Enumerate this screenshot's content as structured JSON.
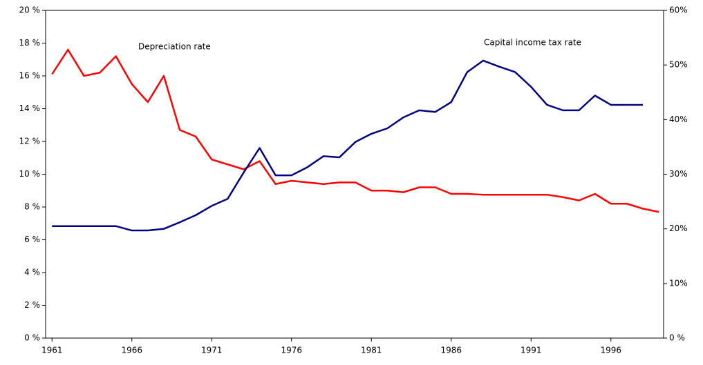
{
  "chart_data": {
    "type": "line",
    "annotations": [
      "Depreciation rate",
      "Capital income tax rate"
    ],
    "x": [
      1961,
      1962,
      1963,
      1964,
      1965,
      1966,
      1967,
      1968,
      1969,
      1970,
      1971,
      1972,
      1973,
      1974,
      1975,
      1976,
      1977,
      1978,
      1979,
      1980,
      1981,
      1982,
      1983,
      1984,
      1985,
      1986,
      1987,
      1988,
      1989,
      1990,
      1991,
      1992,
      1993,
      1994,
      1995,
      1996,
      1997,
      1998,
      1999
    ],
    "series": [
      {
        "color": "#ff0000",
        "axis": "y",
        "values": [
          16.1,
          17.6,
          16.0,
          16.2,
          17.2,
          15.5,
          14.4,
          16.0,
          12.7,
          12.3,
          10.9,
          10.6,
          10.3,
          10.8,
          9.4,
          9.6,
          9.5,
          9.4,
          9.5,
          9.5,
          9.0,
          9.0,
          8.9,
          9.2,
          9.2,
          8.8,
          8.8,
          8.75,
          8.75,
          8.75,
          8.75,
          8.75,
          8.6,
          8.4,
          8.8,
          8.2,
          8.2,
          7.9,
          7.7
        ]
      },
      {
        "color": "#000080",
        "axis": "y2",
        "values": [
          20.5,
          20.5,
          20.5,
          20.5,
          20.5,
          19.7,
          19.7,
          20.0,
          21.2,
          22.5,
          24.2,
          25.5,
          30.3,
          34.8,
          29.8,
          29.8,
          31.3,
          33.3,
          33.1,
          35.9,
          37.4,
          38.4,
          40.4,
          41.7,
          41.4,
          43.2,
          48.7,
          50.8,
          49.7,
          48.7,
          46.0,
          42.7,
          41.7,
          41.7,
          44.4,
          42.7,
          42.7,
          42.7,
          null
        ]
      }
    ],
    "xlim": [
      1960.6,
      1999.3
    ],
    "xticks": [
      1961,
      1966,
      1971,
      1976,
      1981,
      1986,
      1991,
      1996
    ],
    "ylim": [
      0,
      20
    ],
    "yticks": [
      {
        "value": 0,
        "label": "0 %"
      },
      {
        "value": 2,
        "label": "2 %"
      },
      {
        "value": 4,
        "label": "4 %"
      },
      {
        "value": 6,
        "label": "6 %"
      },
      {
        "value": 8,
        "label": "8 %"
      },
      {
        "value": 10,
        "label": "10 %"
      },
      {
        "value": 12,
        "label": "12 %"
      },
      {
        "value": 14,
        "label": "14 %"
      },
      {
        "value": 16,
        "label": "16 %"
      },
      {
        "value": 18,
        "label": "18 %"
      },
      {
        "value": 20,
        "label": "20 %"
      }
    ],
    "y2lim": [
      0,
      60
    ],
    "y2ticks": [
      {
        "value": 0,
        "label": "0 %"
      },
      {
        "value": 10,
        "label": "10%"
      },
      {
        "value": 20,
        "label": "20%"
      },
      {
        "value": 30,
        "label": "30%"
      },
      {
        "value": 40,
        "label": "40%"
      },
      {
        "value": 50,
        "label": "50%"
      },
      {
        "value": 60,
        "label": "60%"
      }
    ]
  }
}
